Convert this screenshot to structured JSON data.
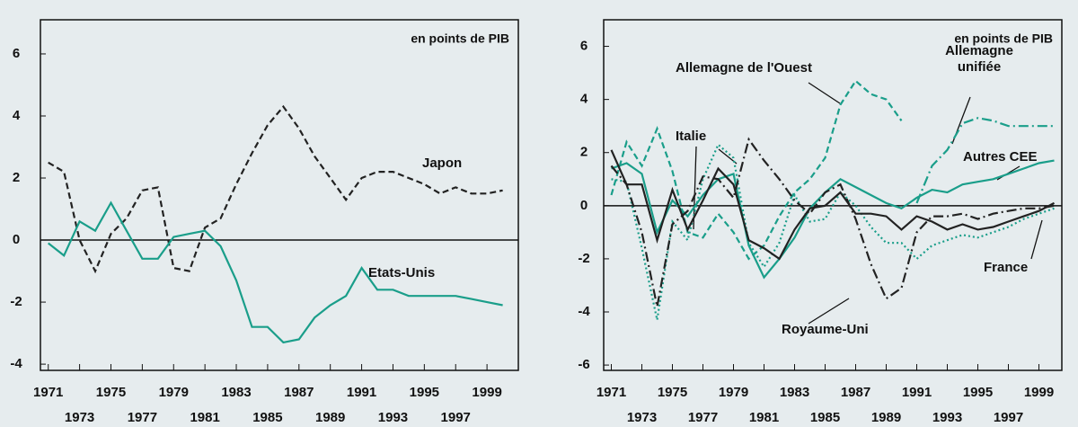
{
  "chart_data": [
    {
      "type": "line",
      "unit_label": "en points de PIB",
      "x": [
        1971,
        1972,
        1973,
        1974,
        1975,
        1976,
        1977,
        1978,
        1979,
        1980,
        1981,
        1982,
        1983,
        1984,
        1985,
        1986,
        1987,
        1988,
        1989,
        1990,
        1991,
        1992,
        1993,
        1994,
        1995,
        1996,
        1997,
        1998,
        1999,
        2000
      ],
      "xlim": [
        1970.5,
        2001
      ],
      "xticks": [
        1971,
        1973,
        1975,
        1977,
        1979,
        1981,
        1983,
        1985,
        1987,
        1989,
        1991,
        1993,
        1995,
        1997,
        1999
      ],
      "ylim": [
        -4.2,
        7.1
      ],
      "yticks": [
        -4,
        -2,
        0,
        2,
        4,
        6
      ],
      "series": [
        {
          "name": "Japon",
          "color": "#222222",
          "style": "dashed",
          "values": [
            2.5,
            2.2,
            0,
            -1.0,
            0.2,
            0.7,
            1.6,
            1.7,
            -0.9,
            -1.0,
            0.4,
            0.7,
            1.8,
            2.8,
            3.7,
            4.3,
            3.6,
            2.7,
            2.0,
            1.3,
            2.0,
            2.2,
            2.2,
            2.0,
            1.8,
            1.5,
            1.7,
            1.5,
            1.5,
            1.6
          ]
        },
        {
          "name": "Etats-Unis",
          "color": "#1a9e8a",
          "style": "solid",
          "values": [
            -0.1,
            -0.5,
            0.6,
            0.3,
            1.2,
            0.3,
            -0.6,
            -0.6,
            0.1,
            0.2,
            0.3,
            -0.2,
            -1.3,
            -2.8,
            -2.8,
            -3.3,
            -3.2,
            -2.5,
            -2.1,
            -1.8,
            -0.9,
            -1.6,
            -1.6,
            -1.8,
            -1.8,
            -1.8,
            -1.8,
            -1.9,
            -2.0,
            -2.1
          ]
        }
      ]
    },
    {
      "type": "line",
      "unit_label": "en points de PIB",
      "x": [
        1971,
        1972,
        1973,
        1974,
        1975,
        1976,
        1977,
        1978,
        1979,
        1980,
        1981,
        1982,
        1983,
        1984,
        1985,
        1986,
        1987,
        1988,
        1989,
        1990,
        1991,
        1992,
        1993,
        1994,
        1995,
        1996,
        1997,
        1998,
        1999,
        2000
      ],
      "xlim": [
        1970.5,
        2000.5
      ],
      "xticks": [
        1971,
        1973,
        1975,
        1977,
        1979,
        1981,
        1983,
        1985,
        1987,
        1989,
        1991,
        1993,
        1995,
        1997,
        1999
      ],
      "ylim": [
        -6.2,
        7
      ],
      "yticks": [
        -6,
        -4,
        -2,
        0,
        2,
        4,
        6
      ],
      "series": [
        {
          "name": "Allemagne de l'Ouest",
          "color": "#1a9e8a",
          "style": "dashed",
          "values": [
            0.4,
            2.4,
            1.5,
            2.9,
            1.3,
            -1.0,
            -1.2,
            -0.3,
            -1.0,
            -2.0,
            -1.5,
            -0.4,
            0.5,
            1.0,
            1.8,
            3.8,
            4.7,
            4.2,
            4.0,
            3.2,
            null,
            null,
            null,
            null,
            null,
            null,
            null,
            null,
            null,
            null
          ]
        },
        {
          "name": "Allemagne unifiée",
          "color": "#1a9e8a",
          "style": "dashdot",
          "values": [
            null,
            null,
            null,
            null,
            null,
            null,
            null,
            null,
            null,
            null,
            null,
            null,
            null,
            null,
            null,
            null,
            null,
            null,
            null,
            null,
            0.1,
            1.5,
            2.1,
            3.1,
            3.3,
            3.2,
            3.0,
            3.0,
            3.0,
            3.0
          ]
        },
        {
          "name": "Italie",
          "color": "#1a9e8a",
          "style": "dotted",
          "values": [
            1.0,
            0.9,
            -1.6,
            -4.3,
            -0.6,
            -1.3,
            1.0,
            2.3,
            1.8,
            -1.4,
            -2.3,
            -1.4,
            0.4,
            -0.6,
            -0.5,
            0.5,
            0,
            -0.8,
            -1.4,
            -1.4,
            -2.0,
            -1.5,
            -1.3,
            -1.1,
            -1.2,
            -1.0,
            -0.8,
            -0.5,
            -0.3,
            -0.1
          ]
        },
        {
          "name": "Autres CEE",
          "color": "#1a9e8a",
          "style": "solid",
          "values": [
            1.4,
            1.6,
            1.2,
            -1.0,
            0.2,
            -0.4,
            0.4,
            1.0,
            1.2,
            -1.5,
            -2.7,
            -2.0,
            -1.2,
            -0.1,
            0.5,
            1.0,
            0.7,
            0.4,
            0.1,
            -0.1,
            0.3,
            0.6,
            0.5,
            0.8,
            0.9,
            1.0,
            1.2,
            1.4,
            1.6,
            1.7
          ]
        },
        {
          "name": "Royaume-Uni",
          "color": "#222222",
          "style": "dashdot",
          "values": [
            1.5,
            0.8,
            -1.0,
            -3.8,
            -0.7,
            -0.2,
            1.1,
            1.0,
            0.3,
            2.5,
            1.7,
            1.0,
            0.2,
            -0.3,
            0.5,
            0.8,
            -0.5,
            -2.2,
            -3.5,
            -3.1,
            -1.0,
            -0.4,
            -0.4,
            -0.3,
            -0.5,
            -0.3,
            -0.2,
            -0.1,
            -0.1,
            0
          ]
        },
        {
          "name": "France",
          "color": "#222222",
          "style": "solid",
          "values": [
            2.1,
            0.8,
            0.8,
            -1.3,
            0.6,
            -0.9,
            0.2,
            1.4,
            0.8,
            -1.3,
            -1.6,
            -2.0,
            -0.9,
            -0.1,
            0,
            0.5,
            -0.3,
            -0.3,
            -0.4,
            -0.9,
            -0.4,
            -0.6,
            -0.9,
            -0.7,
            -0.9,
            -0.8,
            -0.6,
            -0.4,
            -0.2,
            0.1
          ]
        }
      ]
    }
  ]
}
